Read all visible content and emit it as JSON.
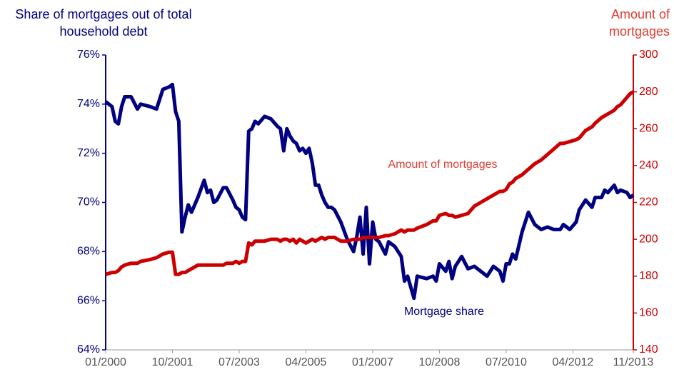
{
  "chart_data": {
    "type": "line",
    "ylabel": "Share of mortgages out of total household debt",
    "y2label": "Amount of mortgages",
    "x": [
      "01/2000",
      "03/2000",
      "04/2000",
      "05/2000",
      "06/2000",
      "07/2000",
      "09/2000",
      "11/2000",
      "12/2000",
      "03/2001",
      "05/2001",
      "07/2001",
      "09/2001",
      "10/2001",
      "11/2001",
      "12/2001",
      "01/2002",
      "02/2002",
      "03/2002",
      "04/2002",
      "06/2002",
      "08/2002",
      "09/2002",
      "10/2002",
      "11/2002",
      "12/2002",
      "02/2003",
      "03/2003",
      "05/2003",
      "06/2003",
      "07/2003",
      "08/2003",
      "09/2003",
      "10/2003",
      "11/2003",
      "12/2003",
      "01/2004",
      "03/2004",
      "05/2004",
      "07/2004",
      "08/2004",
      "09/2004",
      "10/2004",
      "11/2004",
      "12/2004",
      "01/2005",
      "02/2005",
      "03/2005",
      "04/2005",
      "05/2005",
      "06/2005",
      "07/2005",
      "08/2005",
      "09/2005",
      "10/2005",
      "11/2005",
      "12/2005",
      "01/2006",
      "03/2006",
      "05/2006",
      "07/2006",
      "08/2006",
      "09/2006",
      "10/2006",
      "11/2006",
      "12/2006",
      "01/2007",
      "02/2007",
      "03/2007",
      "05/2007",
      "06/2007",
      "08/2007",
      "10/2007",
      "11/2007",
      "12/2007",
      "02/2008",
      "03/2008",
      "06/2008",
      "08/2008",
      "09/2008",
      "10/2008",
      "12/2008",
      "01/2009",
      "02/2009",
      "03/2009",
      "05/2009",
      "07/2009",
      "09/2009",
      "11/2009",
      "01/2010",
      "03/2010",
      "05/2010",
      "06/2010",
      "07/2010",
      "08/2010",
      "09/2010",
      "10/2010",
      "12/2010",
      "02/2011",
      "04/2011",
      "06/2011",
      "08/2011",
      "10/2011",
      "12/2011",
      "01/2012",
      "03/2012",
      "05/2012",
      "06/2012",
      "08/2012",
      "10/2012",
      "11/2012",
      "01/2013",
      "02/2013",
      "03/2013",
      "05/2013",
      "06/2013",
      "07/2013",
      "09/2013",
      "10/2013",
      "11/2013"
    ],
    "series": [
      {
        "name": "Mortgage share",
        "color": "#000080",
        "axis": "y",
        "values": [
          74.1,
          73.9,
          73.3,
          73.2,
          73.9,
          74.3,
          74.3,
          73.8,
          74.0,
          73.9,
          73.8,
          74.6,
          74.7,
          74.8,
          73.7,
          73.3,
          68.8,
          69.4,
          69.9,
          69.6,
          70.2,
          70.9,
          70.4,
          70.5,
          70.0,
          70.1,
          70.6,
          70.6,
          70.1,
          69.8,
          69.7,
          69.4,
          69.3,
          72.9,
          73.0,
          73.3,
          73.2,
          73.5,
          73.4,
          73.1,
          73.0,
          72.1,
          73.0,
          72.7,
          72.5,
          72.4,
          72.1,
          72.2,
          72.0,
          72.2,
          71.6,
          70.7,
          70.7,
          70.3,
          70.0,
          69.8,
          69.8,
          69.7,
          69.2,
          68.5,
          68.0,
          68.6,
          69.4,
          67.9,
          69.8,
          67.5,
          69.2,
          68.5,
          68.4,
          67.9,
          68.4,
          68.2,
          67.8,
          66.8,
          67.0,
          66.1,
          67.0,
          66.9,
          67.0,
          66.8,
          67.5,
          67.2,
          67.6,
          66.9,
          67.4,
          67.8,
          67.3,
          67.4,
          67.2,
          67.0,
          67.4,
          67.2,
          66.8,
          67.5,
          67.5,
          67.9,
          67.7,
          68.8,
          69.6,
          69.1,
          68.9,
          69.0,
          68.9,
          68.9,
          69.1,
          68.9,
          69.2,
          69.7,
          70.1,
          69.8,
          70.2,
          70.2,
          70.5,
          70.4,
          70.7,
          70.4,
          70.5,
          70.4,
          70.2,
          70.3
        ]
      },
      {
        "name": "Amount of mortgages",
        "color": "#cc0000",
        "axis": "y2",
        "values": [
          181,
          182,
          182,
          183,
          185,
          186,
          187,
          187,
          188,
          189,
          190,
          192,
          193,
          193,
          181,
          181,
          182,
          182,
          183,
          184,
          186,
          186,
          186,
          186,
          186,
          186,
          186,
          187,
          187,
          188,
          187,
          188,
          188,
          198,
          197,
          199,
          199,
          199,
          200,
          200,
          199,
          200,
          200,
          199,
          200,
          198,
          200,
          199,
          198,
          199,
          200,
          199,
          200,
          201,
          200,
          201,
          201,
          201,
          199,
          199,
          200,
          200,
          200,
          201,
          201,
          201,
          201,
          201,
          201,
          202,
          202,
          203,
          205,
          204,
          205,
          205,
          206,
          208,
          210,
          210,
          213,
          214,
          213,
          213,
          212,
          213,
          214,
          218,
          220,
          222,
          224,
          226,
          226,
          227,
          230,
          231,
          233,
          235,
          238,
          241,
          243,
          246,
          249,
          252,
          252,
          253,
          254,
          255,
          259,
          261,
          263,
          266,
          267,
          268,
          270,
          272,
          273,
          277,
          279,
          280
        ]
      }
    ],
    "xlim": [
      "01/2000",
      "11/2013"
    ],
    "xticks": [
      "01/2000",
      "10/2001",
      "07/2003",
      "04/2005",
      "01/2007",
      "10/2008",
      "07/2010",
      "04/2012",
      "11/2013"
    ],
    "ylim": [
      64,
      76
    ],
    "yticks": [
      {
        "value": 64,
        "label": "64%"
      },
      {
        "value": 66,
        "label": "66%"
      },
      {
        "value": 68,
        "label": "68%"
      },
      {
        "value": 70,
        "label": "70%"
      },
      {
        "value": 72,
        "label": "72%"
      },
      {
        "value": 74,
        "label": "74%"
      },
      {
        "value": 76,
        "label": "76%"
      }
    ],
    "y2lim": [
      140,
      300
    ],
    "y2ticks": [
      140,
      160,
      180,
      200,
      220,
      240,
      260,
      280,
      300
    ],
    "grid": false
  }
}
